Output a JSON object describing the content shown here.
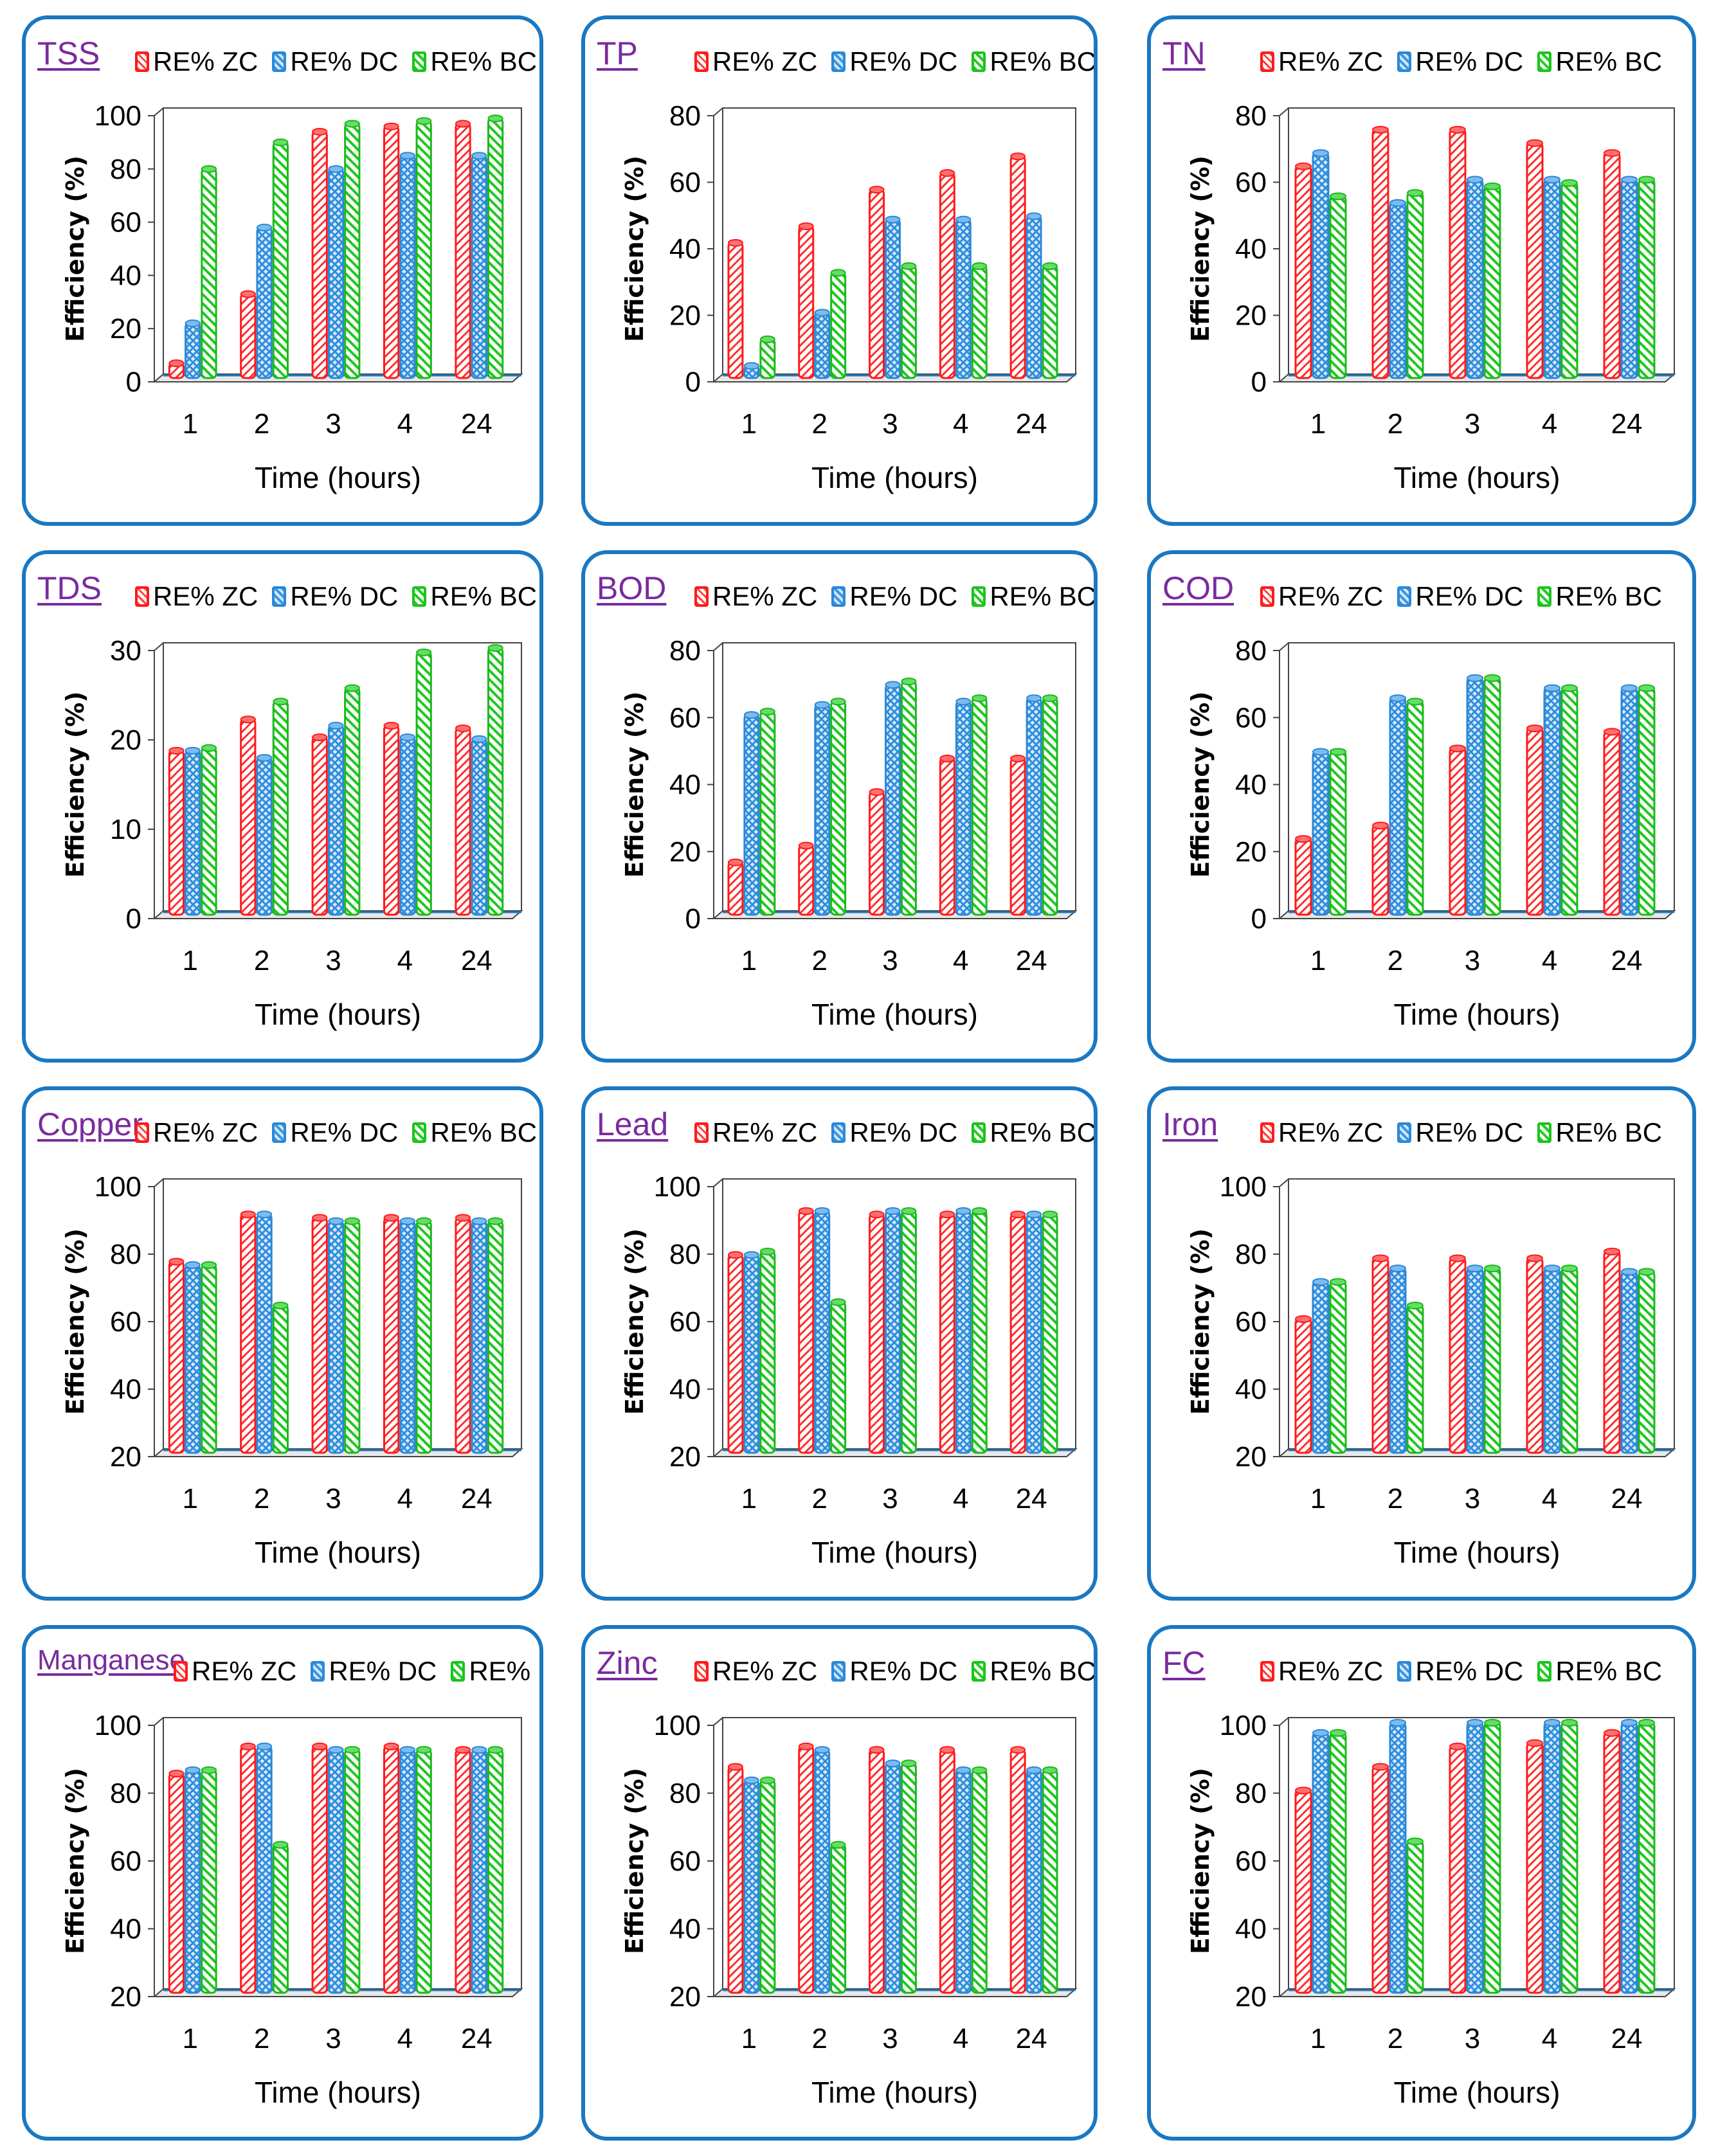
{
  "legend": {
    "zc": "RE% ZC",
    "dc": "RE% DC",
    "bc": "RE%  BC"
  },
  "colors": {
    "zc": "#ff2020",
    "dc": "#2a88d8",
    "bc": "#1bc41b",
    "border": "#1a78c2",
    "title": "#7a2b9e"
  },
  "chart_data": [
    {
      "title": "TSS",
      "type": "bar",
      "categories": [
        "1",
        "2",
        "3",
        "4",
        "24"
      ],
      "series": [
        {
          "name": "RE% ZC",
          "values": [
            6,
            32,
            93,
            95,
            96
          ]
        },
        {
          "name": "RE% DC",
          "values": [
            21,
            57,
            79,
            84,
            84
          ]
        },
        {
          "name": "RE%  BC",
          "values": [
            79,
            89,
            96,
            97,
            98
          ]
        }
      ],
      "ylim": [
        0,
        100
      ],
      "yticks": [
        0,
        20,
        40,
        60,
        80,
        100
      ],
      "xlabel": "Time (hours)",
      "ylabel": "Efficiency (%)"
    },
    {
      "title": "TP",
      "type": "bar",
      "categories": [
        "1",
        "2",
        "3",
        "4",
        "24"
      ],
      "series": [
        {
          "name": "RE% ZC",
          "values": [
            41,
            46,
            57,
            62,
            67
          ]
        },
        {
          "name": "RE% DC",
          "values": [
            4,
            20,
            48,
            48,
            49
          ]
        },
        {
          "name": "RE%  BC",
          "values": [
            12,
            32,
            34,
            34,
            34
          ]
        }
      ],
      "ylim": [
        0,
        80
      ],
      "yticks": [
        0,
        20,
        40,
        60,
        80
      ],
      "xlabel": "Time (hours)",
      "ylabel": "Efficiency (%)"
    },
    {
      "title": "TN",
      "type": "bar",
      "categories": [
        "1",
        "2",
        "3",
        "4",
        "24"
      ],
      "series": [
        {
          "name": "RE% ZC",
          "values": [
            64,
            75,
            75,
            71,
            68
          ]
        },
        {
          "name": "RE% DC",
          "values": [
            68,
            53,
            60,
            60,
            60
          ]
        },
        {
          "name": "RE%  BC",
          "values": [
            55,
            56,
            58,
            59,
            60
          ]
        }
      ],
      "ylim": [
        0,
        80
      ],
      "yticks": [
        0,
        20,
        40,
        60,
        80
      ],
      "xlabel": "Time (hours)",
      "ylabel": "Efficiency (%)"
    },
    {
      "title": "TDS",
      "type": "bar",
      "categories": [
        "1",
        "2",
        "3",
        "4",
        "24"
      ],
      "series": [
        {
          "name": "RE% ZC",
          "values": [
            18.5,
            22,
            20,
            21.3,
            21
          ]
        },
        {
          "name": "RE% DC",
          "values": [
            18.5,
            17.7,
            21.3,
            20,
            19.8
          ]
        },
        {
          "name": "RE%  BC",
          "values": [
            18.8,
            24,
            25.5,
            29.5,
            30
          ]
        }
      ],
      "ylim": [
        0,
        30
      ],
      "yticks": [
        0,
        10,
        20,
        30
      ],
      "xlabel": "Time (hours)",
      "ylabel": "Efficiency (%)"
    },
    {
      "title": "BOD",
      "type": "bar",
      "categories": [
        "1",
        "2",
        "3",
        "4",
        "24"
      ],
      "series": [
        {
          "name": "RE% ZC",
          "values": [
            16,
            21,
            37,
            47,
            47
          ]
        },
        {
          "name": "RE% DC",
          "values": [
            60,
            63,
            69,
            64,
            65
          ]
        },
        {
          "name": "RE%  BC",
          "values": [
            61,
            64,
            70,
            65,
            65
          ]
        }
      ],
      "ylim": [
        0,
        80
      ],
      "yticks": [
        0,
        20,
        40,
        60,
        80
      ],
      "xlabel": "Time (hours)",
      "ylabel": "Efficiency (%)"
    },
    {
      "title": "COD",
      "type": "bar",
      "categories": [
        "1",
        "2",
        "3",
        "4",
        "24"
      ],
      "series": [
        {
          "name": "RE% ZC",
          "values": [
            23,
            27,
            50,
            56,
            55
          ]
        },
        {
          "name": "RE% DC",
          "values": [
            49,
            65,
            71,
            68,
            68
          ]
        },
        {
          "name": "RE%  BC",
          "values": [
            49,
            64,
            71,
            68,
            68
          ]
        }
      ],
      "ylim": [
        0,
        80
      ],
      "yticks": [
        0,
        20,
        40,
        60,
        80
      ],
      "xlabel": "Time (hours)",
      "ylabel": "Efficiency (%)"
    },
    {
      "title": "Copper",
      "type": "bar",
      "categories": [
        "1",
        "2",
        "3",
        "4",
        "24"
      ],
      "series": [
        {
          "name": "RE% ZC",
          "values": [
            77,
            91,
            90,
            90,
            90
          ]
        },
        {
          "name": "RE% DC",
          "values": [
            76,
            91,
            89,
            89,
            89
          ]
        },
        {
          "name": "RE%  BC",
          "values": [
            76,
            64,
            89,
            89,
            89
          ]
        }
      ],
      "ylim": [
        20,
        100
      ],
      "yticks": [
        20,
        40,
        60,
        80,
        100
      ],
      "xlabel": "Time (hours)",
      "ylabel": "Efficiency (%)"
    },
    {
      "title": "Lead",
      "type": "bar",
      "categories": [
        "1",
        "2",
        "3",
        "4",
        "24"
      ],
      "series": [
        {
          "name": "RE% ZC",
          "values": [
            79,
            92,
            91,
            91,
            91
          ]
        },
        {
          "name": "RE% DC",
          "values": [
            79,
            92,
            92,
            92,
            91
          ]
        },
        {
          "name": "RE%  BC",
          "values": [
            80,
            65,
            92,
            92,
            91
          ]
        }
      ],
      "ylim": [
        20,
        100
      ],
      "yticks": [
        20,
        40,
        60,
        80,
        100
      ],
      "xlabel": "Time (hours)",
      "ylabel": "Efficiency (%)"
    },
    {
      "title": "Iron",
      "type": "bar",
      "categories": [
        "1",
        "2",
        "3",
        "4",
        "24"
      ],
      "series": [
        {
          "name": "RE% ZC",
          "values": [
            60,
            78,
            78,
            78,
            80
          ]
        },
        {
          "name": "RE% DC",
          "values": [
            71,
            75,
            75,
            75,
            74
          ]
        },
        {
          "name": "RE%  BC",
          "values": [
            71,
            64,
            75,
            75,
            74
          ]
        }
      ],
      "ylim": [
        20,
        100
      ],
      "yticks": [
        20,
        40,
        60,
        80,
        100
      ],
      "xlabel": "Time (hours)",
      "ylabel": "Efficiency (%)"
    },
    {
      "title": "Manganese",
      "type": "bar",
      "categories": [
        "1",
        "2",
        "3",
        "4",
        "24"
      ],
      "series": [
        {
          "name": "RE% ZC",
          "values": [
            85,
            93,
            93,
            93,
            92
          ]
        },
        {
          "name": "RE% DC",
          "values": [
            86,
            93,
            92,
            92,
            92
          ]
        },
        {
          "name": "RE%  BC",
          "values": [
            86,
            64,
            92,
            92,
            92
          ]
        }
      ],
      "ylim": [
        20,
        100
      ],
      "yticks": [
        20,
        40,
        60,
        80,
        100
      ],
      "xlabel": "Time (hours)",
      "ylabel": "Efficiency (%)"
    },
    {
      "title": "Zinc",
      "type": "bar",
      "categories": [
        "1",
        "2",
        "3",
        "4",
        "24"
      ],
      "series": [
        {
          "name": "RE% ZC",
          "values": [
            87,
            93,
            92,
            92,
            92
          ]
        },
        {
          "name": "RE% DC",
          "values": [
            83,
            92,
            88,
            86,
            86
          ]
        },
        {
          "name": "RE%  BC",
          "values": [
            83,
            64,
            88,
            86,
            86
          ]
        }
      ],
      "ylim": [
        20,
        100
      ],
      "yticks": [
        20,
        40,
        60,
        80,
        100
      ],
      "xlabel": "Time (hours)",
      "ylabel": "Efficiency (%)"
    },
    {
      "title": "FC",
      "type": "bar",
      "categories": [
        "1",
        "2",
        "3",
        "4",
        "24"
      ],
      "series": [
        {
          "name": "RE% ZC",
          "values": [
            80,
            87,
            93,
            94,
            97
          ]
        },
        {
          "name": "RE% DC",
          "values": [
            97,
            100,
            100,
            100,
            100
          ]
        },
        {
          "name": "RE%  BC",
          "values": [
            97,
            65,
            100,
            100,
            100
          ]
        }
      ],
      "ylim": [
        20,
        100
      ],
      "yticks": [
        20,
        40,
        60,
        80,
        100
      ],
      "xlabel": "Time (hours)",
      "ylabel": "Efficiency (%)"
    }
  ]
}
